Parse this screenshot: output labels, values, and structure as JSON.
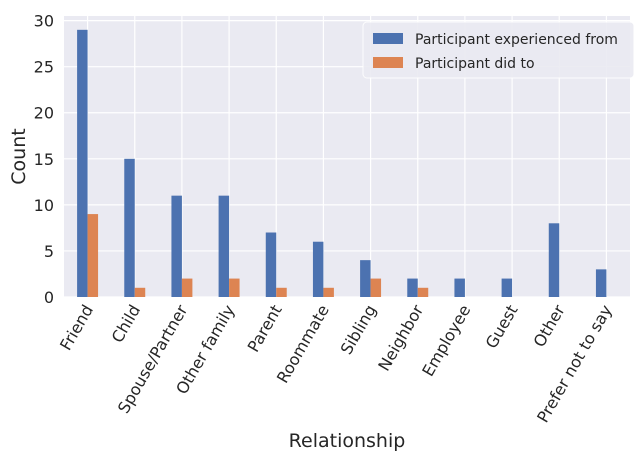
{
  "chart_data": {
    "type": "bar",
    "title": "",
    "xlabel": "Relationship",
    "ylabel": "Count",
    "ylim": [
      0,
      30.5
    ],
    "yticks": [
      0,
      5,
      10,
      15,
      20,
      25,
      30
    ],
    "grid": true,
    "legend_position": "top-right",
    "categories": [
      "Friend",
      "Child",
      "Spouse/Partner",
      "Other family",
      "Parent",
      "Roommate",
      "Sibling",
      "Neighbor",
      "Employee",
      "Guest",
      "Other",
      "Prefer not to say"
    ],
    "series": [
      {
        "name": "Participant experienced from",
        "color": "#4c72b0",
        "values": [
          29,
          15,
          11,
          11,
          7,
          6,
          4,
          2,
          2,
          2,
          8,
          3
        ]
      },
      {
        "name": "Participant did to",
        "color": "#dd8452",
        "values": [
          9,
          1,
          2,
          2,
          1,
          1,
          2,
          1,
          0,
          0,
          0,
          0
        ]
      }
    ],
    "background_color": "#eaeaf2",
    "grid_color": "#ffffff"
  }
}
